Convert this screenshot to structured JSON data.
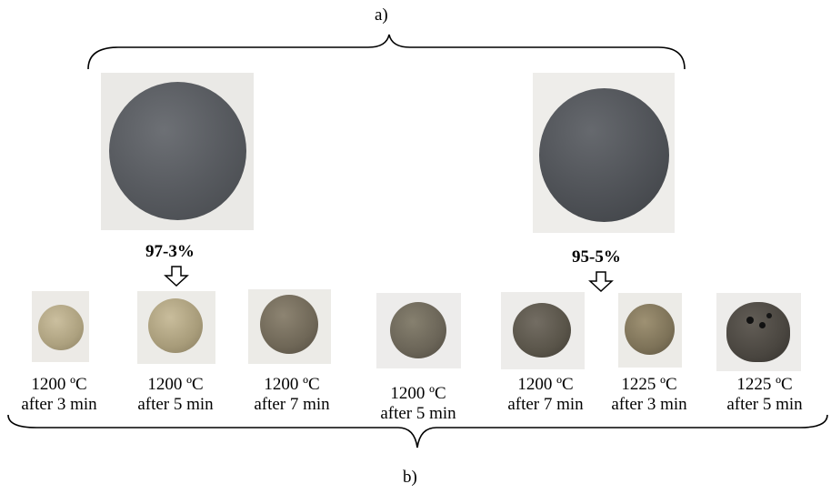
{
  "labels": {
    "a": "a)",
    "b": "b)",
    "left_composition": "97-3%",
    "right_composition": "95-5%"
  },
  "small_samples": [
    {
      "temp": "1200 ºC",
      "time": "after 3 min"
    },
    {
      "temp": "1200 ºC",
      "time": "after 5 min"
    },
    {
      "temp": "1200 ºC",
      "time": "after 7 min"
    },
    {
      "temp": "1200 ºC",
      "time": "after 5 min"
    },
    {
      "temp": "1200 ºC",
      "time": "after 7 min"
    },
    {
      "temp": "1225 ºC",
      "time": "after 3 min"
    },
    {
      "temp": "1225 ºC",
      "time": "after 5 min"
    }
  ],
  "colors": {
    "photo_bg": "#ecebe8",
    "large_sphere": "#55585c",
    "sintered_light": "#b7ab8c",
    "sintered_dark": "#6b6458"
  }
}
